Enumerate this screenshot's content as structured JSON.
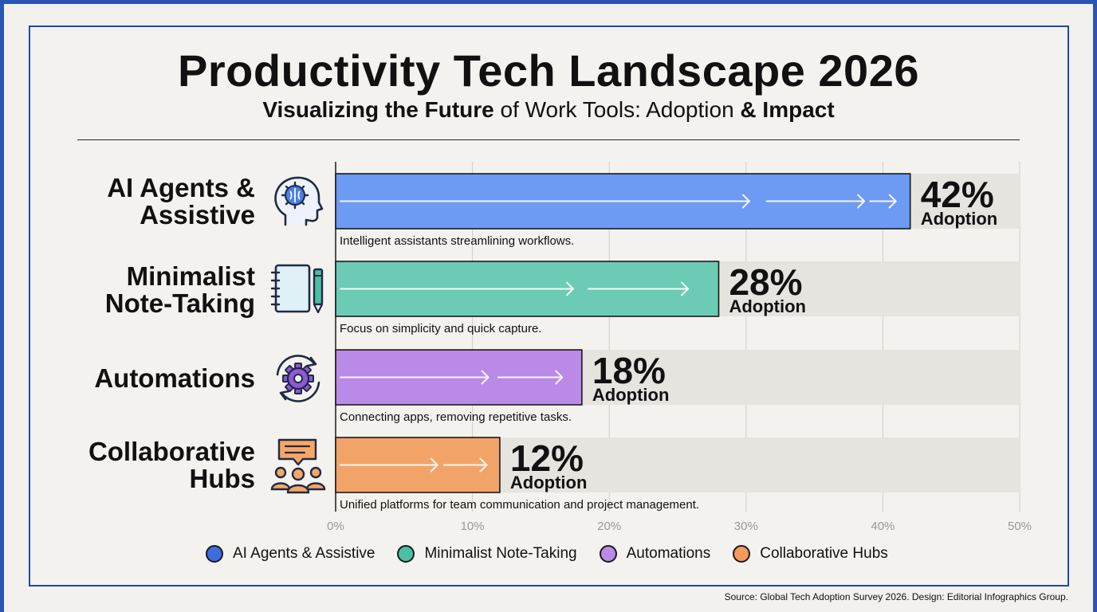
{
  "title": "Productivity Tech Landscape 2026",
  "subtitle": {
    "part1": "Visualizing the Future",
    "part2": " of Work Tools: Adoption ",
    "part3": "& Impact"
  },
  "source": "Source: Global Tech Adoption Survey 2026. Design: Editorial Infographics Group.",
  "value_suffix": "%",
  "value_caption": "Adoption",
  "colors": {
    "ai": "#6d9af2",
    "notes": "#6ccbb5",
    "automations": "#b98ae6",
    "hubs": "#f2a468",
    "track": "#e6e4df",
    "grid": "#cfcdc8"
  },
  "icons": [
    "brain-head-icon",
    "notebook-pen-icon",
    "gear-cycle-icon",
    "team-chat-icon"
  ],
  "chart_data": {
    "type": "bar",
    "orientation": "horizontal",
    "categories": [
      "AI Agents & Assistive",
      "Minimalist Note-Taking",
      "Automations",
      "Collaborative Hubs"
    ],
    "labels": [
      [
        "AI Agents &",
        "Assistive"
      ],
      [
        "Minimalist",
        "Note-Taking"
      ],
      [
        "Automations"
      ],
      [
        "Collaborative",
        "Hubs"
      ]
    ],
    "values": [
      42,
      28,
      18,
      12
    ],
    "descriptions": [
      "Intelligent assistants streamlining workflows.",
      "Focus on simplicity and quick capture.",
      "Connecting apps, removing repetitive tasks.",
      "Unified platforms for team communication and project management."
    ],
    "xlim": [
      0,
      50
    ],
    "xticks": [
      "0%",
      "10%",
      "20%",
      "30%",
      "40%",
      "50%"
    ],
    "grid": true,
    "legend": {
      "position": "bottom",
      "entries": [
        "AI Agents & Assistive",
        "Minimalist Note-Taking",
        "Automations",
        "Collaborative Hubs"
      ]
    }
  }
}
